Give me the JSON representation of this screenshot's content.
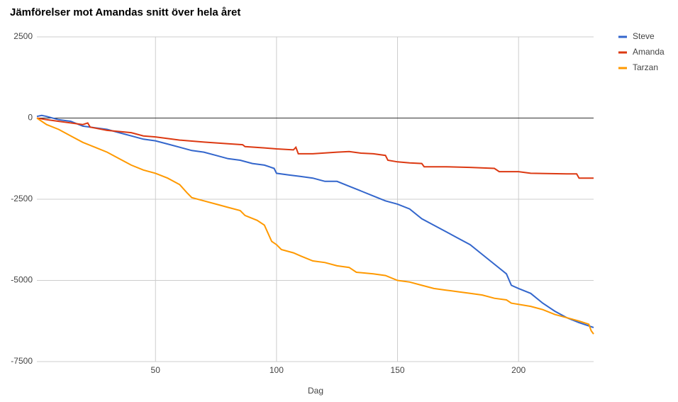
{
  "chart_data": {
    "type": "line",
    "title": "Jämförelser mot Amandas snitt över hela året",
    "x_label": "Dag",
    "xlim": [
      1,
      231
    ],
    "xticks": [
      50,
      100,
      150,
      200
    ],
    "ylim": [
      -7500,
      2500
    ],
    "yticks": [
      -7500,
      -5000,
      -2500,
      0,
      2500
    ],
    "grid": true,
    "legend": "right",
    "series": [
      {
        "name": "Steve",
        "color": "#3366cc",
        "x": [
          1,
          3,
          5,
          10,
          15,
          20,
          25,
          30,
          35,
          40,
          45,
          50,
          55,
          60,
          65,
          70,
          75,
          80,
          85,
          90,
          95,
          99,
          100,
          105,
          110,
          115,
          120,
          125,
          130,
          135,
          140,
          145,
          150,
          155,
          160,
          165,
          170,
          175,
          180,
          185,
          190,
          195,
          197,
          200,
          205,
          210,
          215,
          220,
          225,
          231
        ],
        "values": [
          50,
          80,
          50,
          -50,
          -100,
          -250,
          -300,
          -350,
          -450,
          -550,
          -650,
          -700,
          -800,
          -900,
          -1000,
          -1050,
          -1150,
          -1250,
          -1300,
          -1400,
          -1450,
          -1550,
          -1700,
          -1750,
          -1800,
          -1850,
          -1950,
          -1950,
          -2100,
          -2250,
          -2400,
          -2550,
          -2650,
          -2800,
          -3100,
          -3300,
          -3500,
          -3700,
          -3900,
          -4200,
          -4500,
          -4800,
          -5150,
          -5250,
          -5400,
          -5700,
          -5950,
          -6150,
          -6300,
          -6450
        ]
      },
      {
        "name": "Amanda",
        "color": "#dc3912",
        "x": [
          1,
          5,
          10,
          15,
          20,
          22,
          23,
          30,
          40,
          45,
          50,
          55,
          60,
          70,
          80,
          86,
          87,
          95,
          100,
          107,
          108,
          109,
          115,
          125,
          130,
          135,
          140,
          145,
          146,
          150,
          155,
          160,
          161,
          170,
          180,
          190,
          192,
          200,
          205,
          220,
          224,
          225,
          231
        ],
        "values": [
          0,
          -50,
          -100,
          -150,
          -200,
          -150,
          -280,
          -380,
          -450,
          -550,
          -580,
          -630,
          -680,
          -740,
          -790,
          -820,
          -880,
          -920,
          -950,
          -980,
          -900,
          -1100,
          -1100,
          -1050,
          -1030,
          -1080,
          -1100,
          -1150,
          -1300,
          -1350,
          -1380,
          -1400,
          -1500,
          -1500,
          -1520,
          -1550,
          -1650,
          -1650,
          -1700,
          -1720,
          -1720,
          -1850,
          -1850
        ]
      },
      {
        "name": "Tarzan",
        "color": "#ff9900",
        "x": [
          1,
          5,
          10,
          15,
          20,
          25,
          30,
          35,
          40,
          45,
          50,
          55,
          60,
          63,
          65,
          70,
          75,
          80,
          85,
          87,
          92,
          95,
          98,
          100,
          102,
          107,
          110,
          115,
          120,
          125,
          130,
          133,
          140,
          145,
          150,
          155,
          160,
          165,
          170,
          175,
          180,
          185,
          190,
          195,
          197,
          205,
          210,
          215,
          220,
          225,
          229,
          230,
          231
        ],
        "values": [
          0,
          -200,
          -350,
          -550,
          -750,
          -900,
          -1050,
          -1250,
          -1450,
          -1600,
          -1700,
          -1850,
          -2050,
          -2300,
          -2450,
          -2550,
          -2650,
          -2750,
          -2850,
          -3000,
          -3150,
          -3300,
          -3800,
          -3900,
          -4050,
          -4150,
          -4250,
          -4400,
          -4450,
          -4550,
          -4600,
          -4750,
          -4800,
          -4850,
          -5000,
          -5050,
          -5150,
          -5250,
          -5300,
          -5350,
          -5400,
          -5450,
          -5550,
          -5600,
          -5700,
          -5800,
          -5900,
          -6050,
          -6150,
          -6250,
          -6350,
          -6550,
          -6650
        ]
      }
    ]
  }
}
